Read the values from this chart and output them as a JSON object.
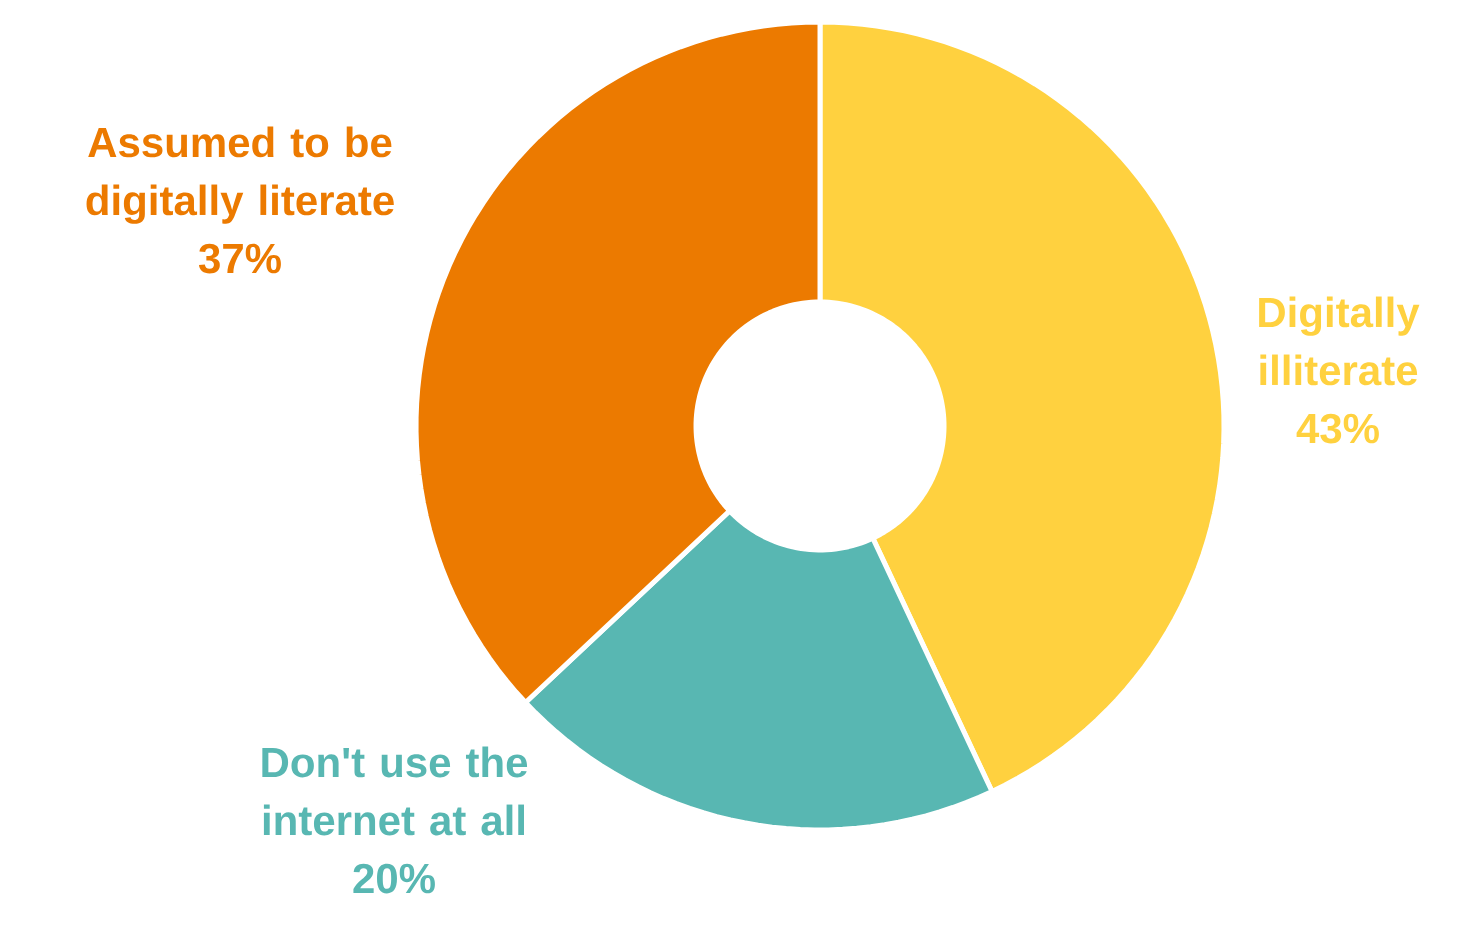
{
  "chart_data": {
    "type": "donut",
    "categories": [
      "Digitally illiterate",
      "Don't use the internet at all",
      "Assumed to be digitally literate"
    ],
    "values": [
      43,
      20,
      37
    ],
    "value_labels": [
      "43%",
      "20%",
      "37%"
    ],
    "colors": [
      "#ffd13f",
      "#58b7b2",
      "#ec7a00"
    ]
  }
}
